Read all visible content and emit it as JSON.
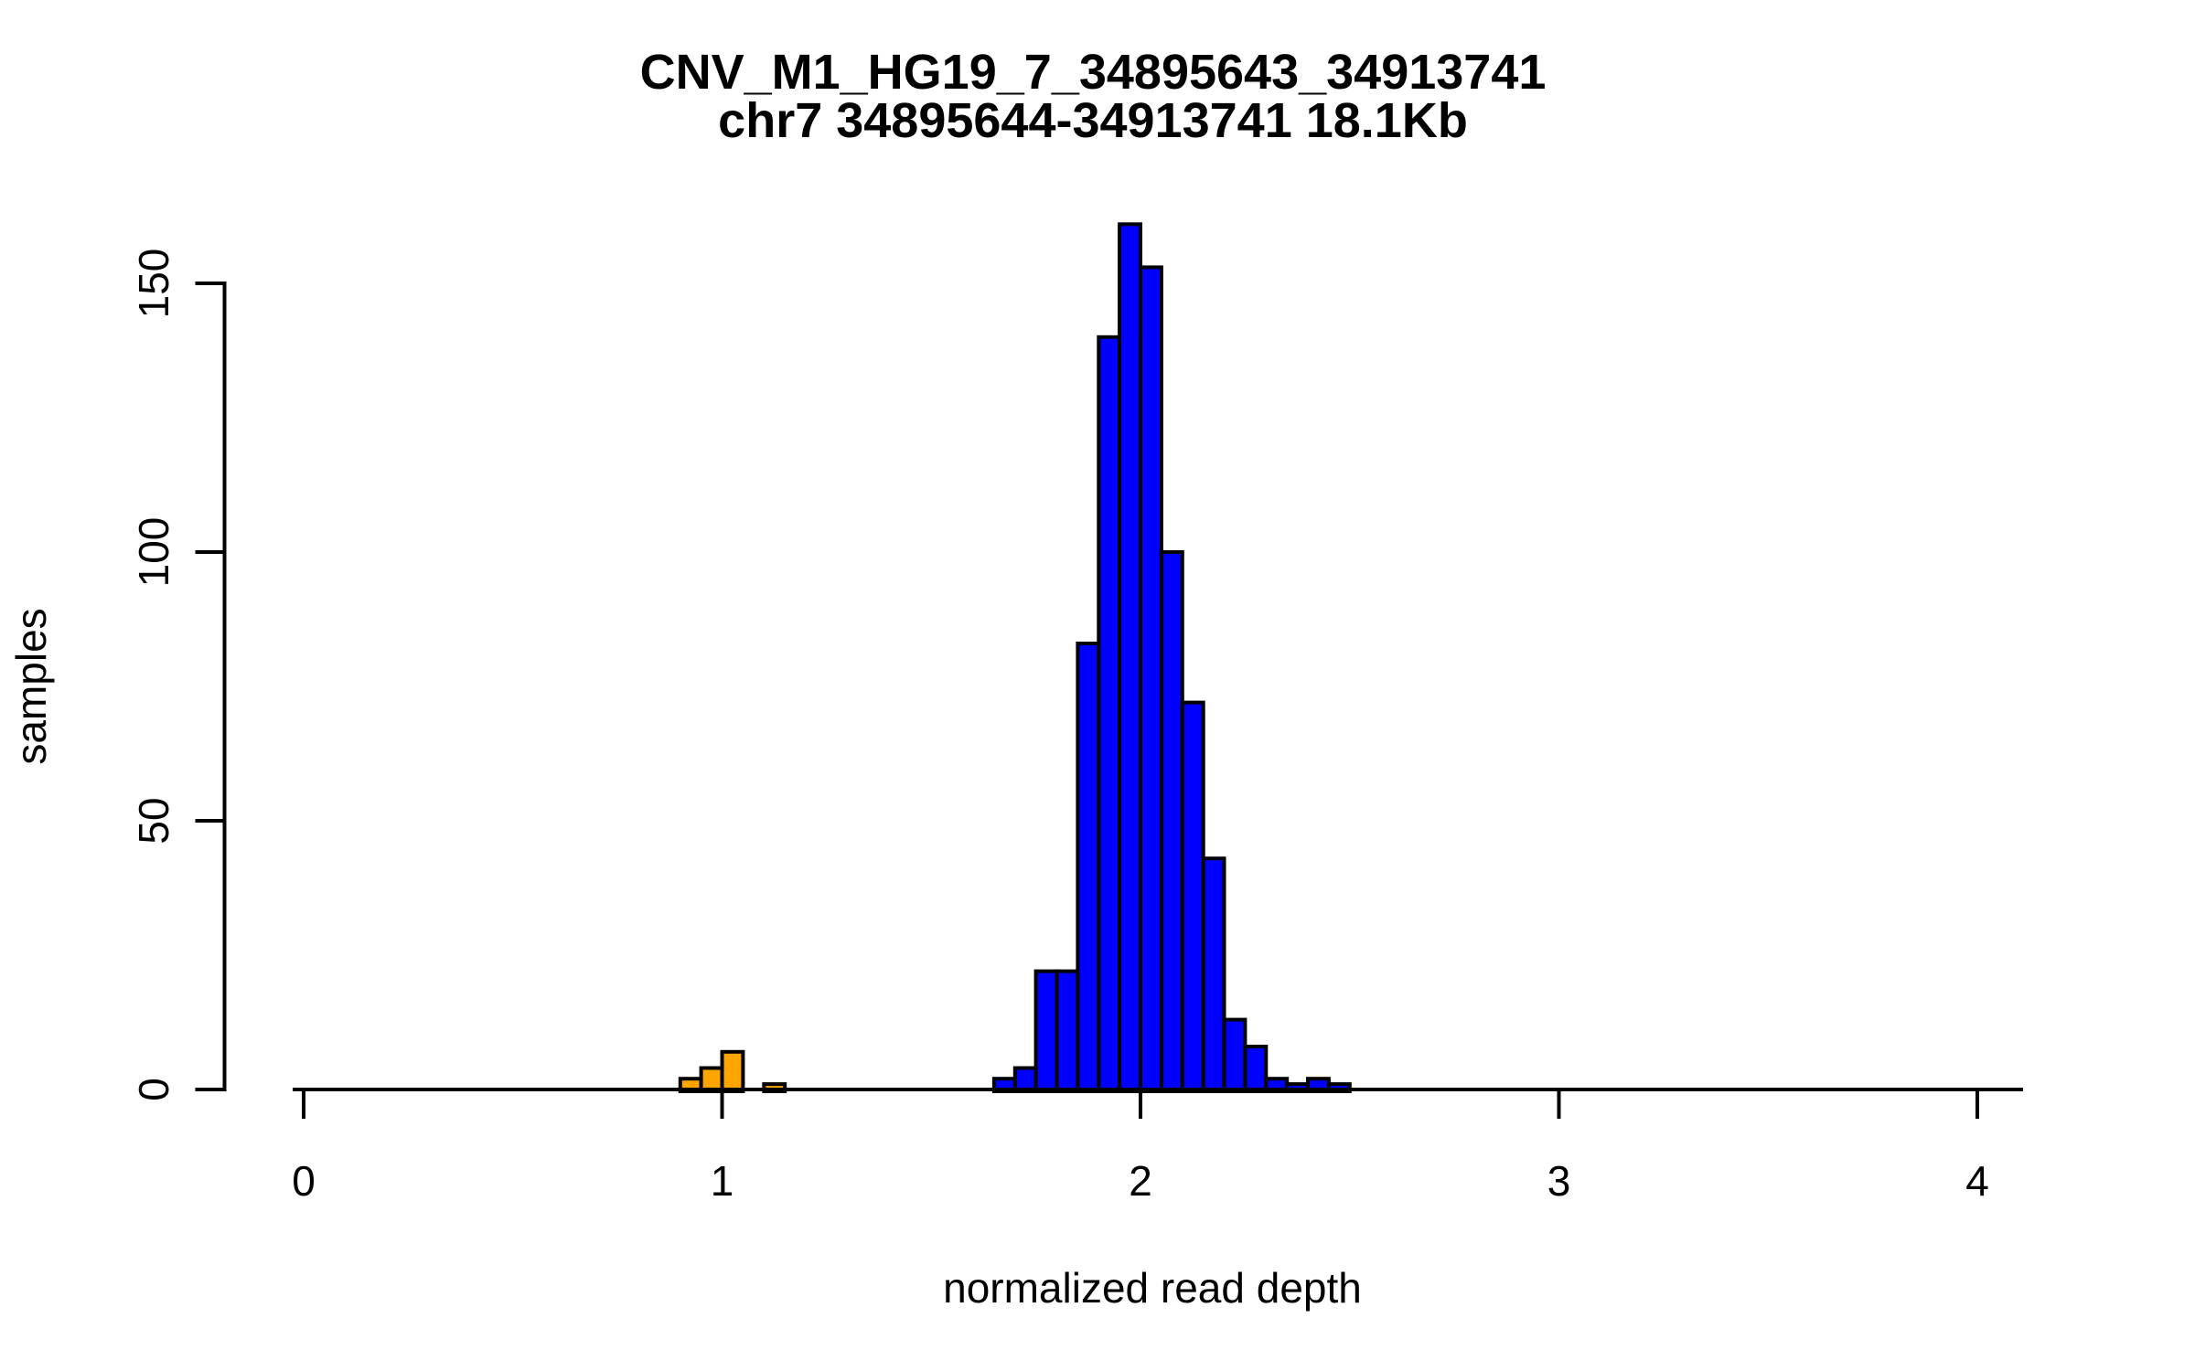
{
  "page": {
    "background": "#FFFFFF"
  },
  "title": {
    "line1": "CNV_M1_HG19_7_34895643_34913741",
    "line2": "chr7 34895644-34913741 18.1Kb"
  },
  "axes": {
    "x": {
      "label": "normalized read depth",
      "tick_labels": [
        "0",
        "1",
        "2",
        "3",
        "4"
      ],
      "tick_values": [
        0,
        1,
        2,
        3,
        4
      ],
      "range": [
        0,
        4
      ]
    },
    "y": {
      "label": "samples",
      "tick_labels": [
        "0",
        "50",
        "100",
        "150"
      ],
      "tick_values": [
        0,
        50,
        100,
        150
      ],
      "range": [
        0,
        161
      ]
    }
  },
  "colors": {
    "orange_bars": "#FFA500",
    "blue_bars": "#0000FF",
    "bar_border": "#000000",
    "axis": "#000000",
    "text": "#000000",
    "background": "#FFFFFF"
  },
  "chart_data": {
    "type": "bar",
    "subtype": "histogram",
    "title": "CNV_M1_HG19_7_34895643_34913741",
    "subtitle": "chr7 34895644-34913741 18.1Kb",
    "xlabel": "normalized read depth",
    "ylabel": "samples",
    "xlim": [
      0,
      4
    ],
    "ylim": [
      0,
      161
    ],
    "bin_width": 0.05,
    "grid": false,
    "legend": "none",
    "series": [
      {
        "name": "orange",
        "color": "#FFA500",
        "bins": [
          {
            "x": 0.9,
            "count": 2
          },
          {
            "x": 0.95,
            "count": 4
          },
          {
            "x": 1.0,
            "count": 7
          },
          {
            "x": 1.1,
            "count": 1
          }
        ]
      },
      {
        "name": "blue",
        "color": "#0000FF",
        "bins": [
          {
            "x": 1.65,
            "count": 2
          },
          {
            "x": 1.7,
            "count": 4
          },
          {
            "x": 1.75,
            "count": 22
          },
          {
            "x": 1.8,
            "count": 22
          },
          {
            "x": 1.85,
            "count": 83
          },
          {
            "x": 1.9,
            "count": 140
          },
          {
            "x": 1.95,
            "count": 161
          },
          {
            "x": 2.0,
            "count": 153
          },
          {
            "x": 2.05,
            "count": 100
          },
          {
            "x": 2.1,
            "count": 72
          },
          {
            "x": 2.15,
            "count": 43
          },
          {
            "x": 2.2,
            "count": 13
          },
          {
            "x": 2.25,
            "count": 8
          },
          {
            "x": 2.3,
            "count": 2
          },
          {
            "x": 2.35,
            "count": 1
          },
          {
            "x": 2.4,
            "count": 2
          },
          {
            "x": 2.45,
            "count": 1
          }
        ]
      }
    ]
  }
}
